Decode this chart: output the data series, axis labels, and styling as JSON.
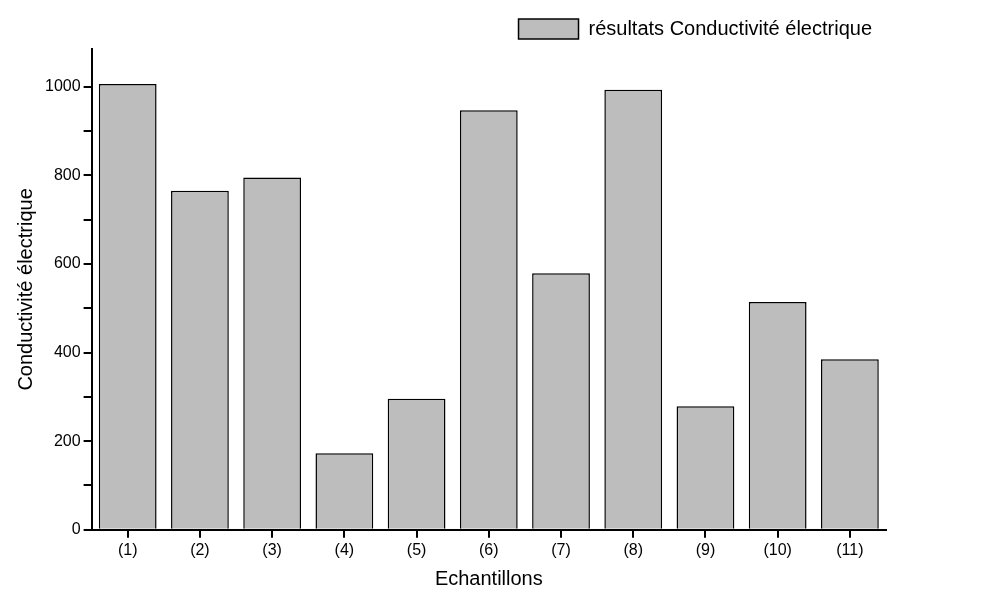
{
  "chart_data": {
    "type": "bar",
    "xlabel": "Echantillons",
    "ylabel": "Conductivité électrique",
    "categories": [
      "(1)",
      "(2)",
      "(3)",
      "(4)",
      "(5)",
      "(6)",
      "(7)",
      "(8)",
      "(9)",
      "(10)",
      "(11)"
    ],
    "series": [
      {
        "name": "résultats Conductivité électrique",
        "color": "#bdbdbd",
        "values": [
          1006,
          765,
          795,
          173,
          296,
          947,
          579,
          993,
          279,
          514,
          385
        ]
      }
    ],
    "ylim": [
      0,
      1085
    ],
    "yticks": [
      0,
      {
        "value": 100,
        "label": null
      },
      200,
      {
        "value": 300,
        "label": null
      },
      400,
      {
        "value": 500,
        "label": null
      },
      600,
      {
        "value": 700,
        "label": null
      },
      800,
      {
        "value": 900,
        "label": null
      },
      1000
    ],
    "grid": false,
    "legend": "top right"
  }
}
